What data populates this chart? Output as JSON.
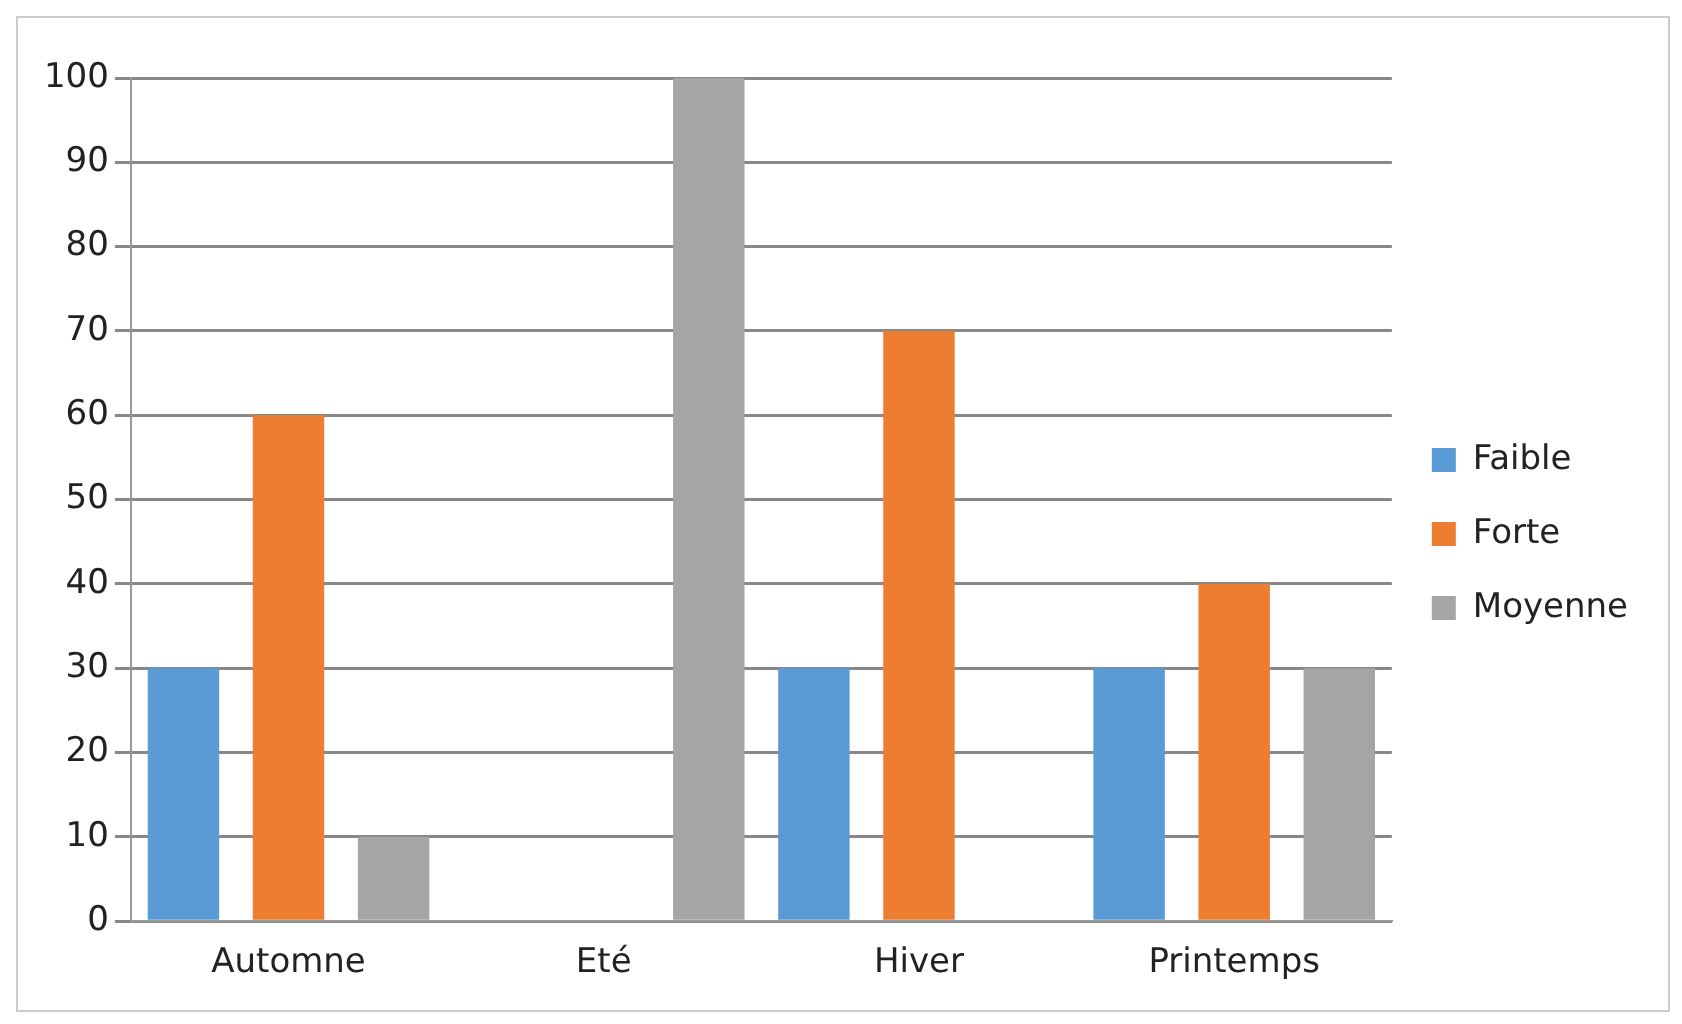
{
  "chart_data": {
    "type": "bar",
    "categories": [
      "Automne",
      "Eté",
      "Hiver",
      "Printemps"
    ],
    "series": [
      {
        "name": "Faible",
        "color": "#5b9bd5",
        "values": [
          30,
          0,
          30,
          30
        ]
      },
      {
        "name": "Forte",
        "color": "#ed7d31",
        "values": [
          60,
          0,
          70,
          40
        ]
      },
      {
        "name": "Moyenne",
        "color": "#a5a5a5",
        "values": [
          10,
          100,
          0,
          30
        ]
      }
    ],
    "ylim": [
      0,
      100
    ],
    "yticks": [
      0,
      10,
      20,
      30,
      40,
      50,
      60,
      70,
      80,
      90,
      100
    ],
    "grid": "y",
    "legend": "right"
  }
}
